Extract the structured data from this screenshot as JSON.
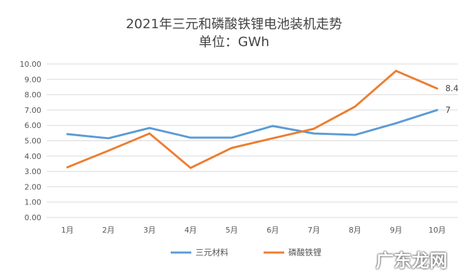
{
  "chart_data": {
    "type": "line",
    "title": "2021年三元和磷酸铁锂电池装机走势",
    "subtitle": "单位：GWh",
    "categories": [
      "1月",
      "2月",
      "3月",
      "4月",
      "5月",
      "6月",
      "7月",
      "8月",
      "9月",
      "10月"
    ],
    "ylim": [
      0,
      10
    ],
    "yticks": [
      "0.00",
      "1.00",
      "2.00",
      "3.00",
      "4.00",
      "5.00",
      "6.00",
      "7.00",
      "8.00",
      "9.00",
      "10.00"
    ],
    "grid": true,
    "legend": "bottom",
    "series": [
      {
        "name": "三元材料",
        "color": "#5b9bd5",
        "values": [
          5.43,
          5.16,
          5.83,
          5.2,
          5.2,
          5.96,
          5.47,
          5.38,
          6.14,
          7.0
        ],
        "end_label": "7"
      },
      {
        "name": "磷酸铁锂",
        "color": "#ed7d31",
        "values": [
          3.27,
          4.35,
          5.47,
          3.23,
          4.53,
          5.16,
          5.78,
          7.22,
          9.55,
          8.4
        ],
        "end_label": "8.4"
      }
    ]
  },
  "watermark": "广东龙网"
}
